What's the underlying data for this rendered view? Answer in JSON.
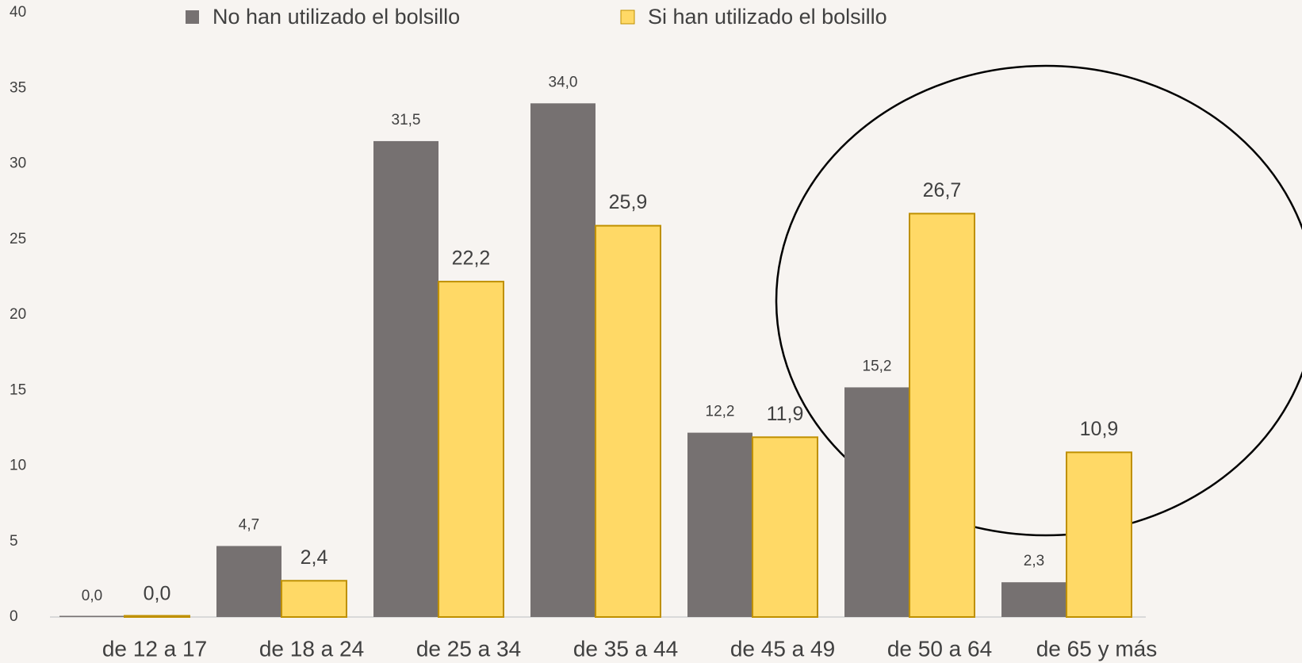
{
  "chart_data": {
    "type": "bar",
    "categories": [
      "de 12 a 17",
      "de 18 a 24",
      "de 25 a 34",
      "de 35 a 44",
      "de 45 a 49",
      "de 50 a 64",
      "de 65 y más"
    ],
    "series": [
      {
        "name": "No han utilizado el bolsillo",
        "color": "#767171",
        "values": [
          0.0,
          4.7,
          31.5,
          34.0,
          12.2,
          15.2,
          2.3
        ],
        "value_labels": [
          "0,0",
          "4,7",
          "31,5",
          "34,0",
          "12,2",
          "15,2",
          "2,3"
        ]
      },
      {
        "name": "Si han utilizado el bolsillo",
        "color": "#FFD966",
        "values": [
          0.0,
          2.4,
          22.2,
          25.9,
          11.9,
          26.7,
          10.9
        ],
        "value_labels": [
          "0,0",
          "2,4",
          "22,2",
          "25,9",
          "11,9",
          "26,7",
          "10,9"
        ]
      }
    ],
    "ylim": [
      0,
      40
    ],
    "yticks": [
      0,
      5,
      10,
      15,
      20,
      25,
      30,
      35,
      40
    ],
    "grid": false,
    "legend": "top"
  }
}
